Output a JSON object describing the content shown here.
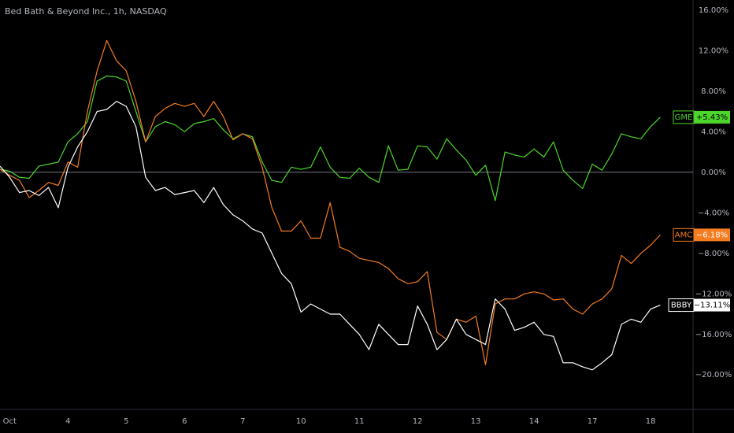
{
  "chart_data": {
    "type": "line",
    "title": "Bed Bath & Beyond Inc., 1h, NASDAQ",
    "categories": [
      null,
      "Oct",
      null,
      null,
      null,
      null,
      null,
      "4",
      null,
      null,
      null,
      null,
      null,
      "5",
      null,
      null,
      null,
      null,
      null,
      "6",
      null,
      null,
      null,
      null,
      null,
      "7",
      null,
      null,
      null,
      null,
      null,
      "10",
      null,
      null,
      null,
      null,
      null,
      "11",
      null,
      null,
      null,
      null,
      null,
      "12",
      null,
      null,
      null,
      null,
      null,
      "13",
      null,
      null,
      null,
      null,
      null,
      "14",
      null,
      null,
      null,
      null,
      null,
      "17",
      null,
      null,
      null,
      null,
      null,
      "18",
      null
    ],
    "series": [
      {
        "name": "GME",
        "color": "#4cd62b",
        "value_label": "+5.43%",
        "values": [
          0.3,
          0.1,
          -0.5,
          -0.6,
          0.6,
          0.8,
          1.0,
          3.0,
          3.8,
          5.0,
          9.0,
          9.5,
          9.4,
          9.0,
          6.0,
          3.0,
          4.5,
          5.0,
          4.7,
          4.0,
          4.8,
          5.0,
          5.3,
          4.2,
          3.3,
          3.8,
          3.5,
          1.0,
          -0.8,
          -1.0,
          0.5,
          0.3,
          0.5,
          2.5,
          0.5,
          -0.5,
          -0.6,
          0.4,
          -0.5,
          -1.0,
          2.6,
          0.2,
          0.3,
          2.6,
          2.5,
          1.3,
          3.3,
          2.2,
          1.2,
          -0.3,
          0.7,
          -2.8,
          2.0,
          1.7,
          1.5,
          2.3,
          1.5,
          3.0,
          0.2,
          -0.8,
          -1.6,
          0.8,
          0.2,
          1.8,
          3.8,
          3.5,
          3.3,
          4.5,
          5.43
        ]
      },
      {
        "name": "AMC",
        "color": "#f57c20",
        "value_label": "−6.18%",
        "values": [
          0.3,
          -0.3,
          -0.8,
          -2.5,
          -1.8,
          -1.0,
          -1.3,
          1.0,
          0.5,
          6.0,
          10.0,
          13.0,
          11.0,
          10.0,
          7.0,
          3.0,
          5.5,
          6.3,
          6.8,
          6.5,
          6.8,
          5.5,
          7.0,
          5.5,
          3.2,
          3.8,
          3.3,
          0.5,
          -3.5,
          -5.8,
          -5.8,
          -4.8,
          -6.5,
          -6.5,
          -3.0,
          -7.4,
          -7.8,
          -8.5,
          -8.7,
          -8.9,
          -9.5,
          -10.5,
          -11.0,
          -10.8,
          -9.8,
          -15.8,
          -16.5,
          -14.5,
          -14.8,
          -14.2,
          -19.0,
          -13.0,
          -12.5,
          -12.5,
          -12.0,
          -11.8,
          -12.0,
          -12.6,
          -12.5,
          -13.5,
          -14.0,
          -13.0,
          -12.5,
          -11.5,
          -8.2,
          -9.0,
          -8.0,
          -7.2,
          -6.18
        ]
      },
      {
        "name": "BBBY",
        "color": "#ffffff",
        "value_label": "−13.11%",
        "values": [
          0.6,
          -0.5,
          -2.0,
          -1.8,
          -2.3,
          -1.5,
          -3.5,
          0.5,
          2.5,
          4.0,
          6.0,
          6.2,
          7.0,
          6.5,
          4.5,
          -0.5,
          -1.8,
          -1.5,
          -2.2,
          -2.0,
          -1.8,
          -3.0,
          -1.5,
          -3.2,
          -4.2,
          -4.8,
          -5.6,
          -6.0,
          -8.0,
          -10.0,
          -11.0,
          -13.8,
          -13.0,
          -13.5,
          -14.0,
          -14.0,
          -15.0,
          -16.0,
          -17.5,
          -15.0,
          -16.0,
          -17.0,
          -17.0,
          -13.2,
          -15.0,
          -17.5,
          -16.5,
          -14.5,
          -16.0,
          -16.5,
          -17.0,
          -12.5,
          -13.5,
          -15.6,
          -15.3,
          -14.8,
          -16.0,
          -16.2,
          -18.8,
          -18.8,
          -19.2,
          -19.5,
          -18.8,
          -18.0,
          -15.0,
          -14.5,
          -14.8,
          -13.5,
          -13.11
        ]
      }
    ],
    "ylim": [
      -23.4,
      17
    ],
    "yticks": [
      {
        "value": 16,
        "label": "16.00%"
      },
      {
        "value": 12,
        "label": "12.00%"
      },
      {
        "value": 8,
        "label": "8.00%"
      },
      {
        "value": 4,
        "label": "4.00%"
      },
      {
        "value": 0,
        "label": "0.00%"
      },
      {
        "value": -4,
        "label": "−4.00%"
      },
      {
        "value": -8,
        "label": "−8.00%"
      },
      {
        "value": -12,
        "label": "−12.00%"
      },
      {
        "value": -16,
        "label": "−16.00%"
      },
      {
        "value": -20,
        "label": "−20.00%"
      }
    ]
  }
}
